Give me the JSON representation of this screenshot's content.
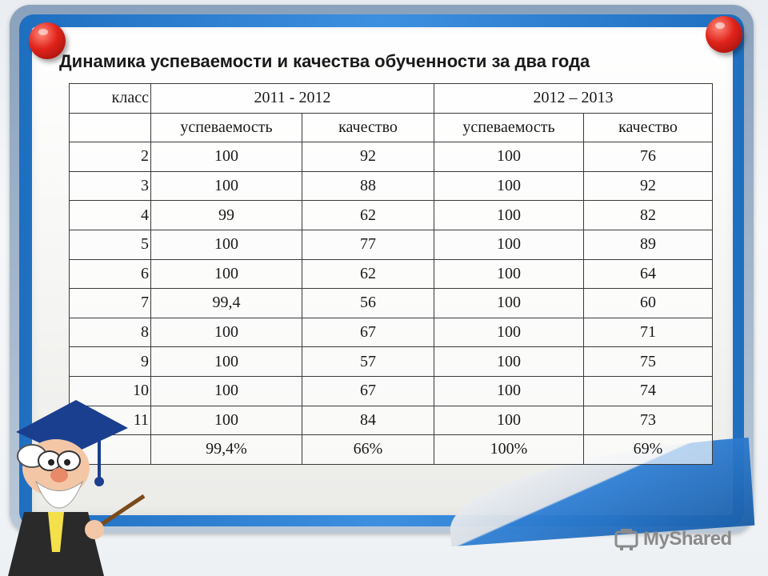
{
  "slide": {
    "title": "Динамика успеваемости и качества обученности за два года"
  },
  "table": {
    "header": {
      "class_label": "класс",
      "year1": "2011 - 2012",
      "year2": "2012 – 2013"
    },
    "subheader": [
      "успеваемость",
      "качество",
      "успеваемость",
      "качество"
    ],
    "rows": [
      [
        "2",
        "100",
        "92",
        "100",
        "76"
      ],
      [
        "3",
        "100",
        "88",
        "100",
        "92"
      ],
      [
        "4",
        "99",
        "62",
        "100",
        "82"
      ],
      [
        "5",
        "100",
        "77",
        "100",
        "89"
      ],
      [
        "6",
        "100",
        "62",
        "100",
        "64"
      ],
      [
        "7",
        "99,4",
        "56",
        "100",
        "60"
      ],
      [
        "8",
        "100",
        "67",
        "100",
        "71"
      ],
      [
        "9",
        "100",
        "57",
        "100",
        "75"
      ],
      [
        "10",
        "100",
        "67",
        "100",
        "74"
      ],
      [
        "11",
        "100",
        "84",
        "100",
        "73"
      ],
      [
        "",
        "99,4%",
        "66%",
        "100%",
        "69%"
      ]
    ]
  },
  "watermark": {
    "logo_text": "MyShared"
  },
  "icons": [
    "pushpin-icon",
    "professor-mascot",
    "myshared-logo-icon"
  ],
  "colors": {
    "frame_blue": "#2f7fd4",
    "pin_red": "#e0231b",
    "text": "#1a1a1a"
  }
}
